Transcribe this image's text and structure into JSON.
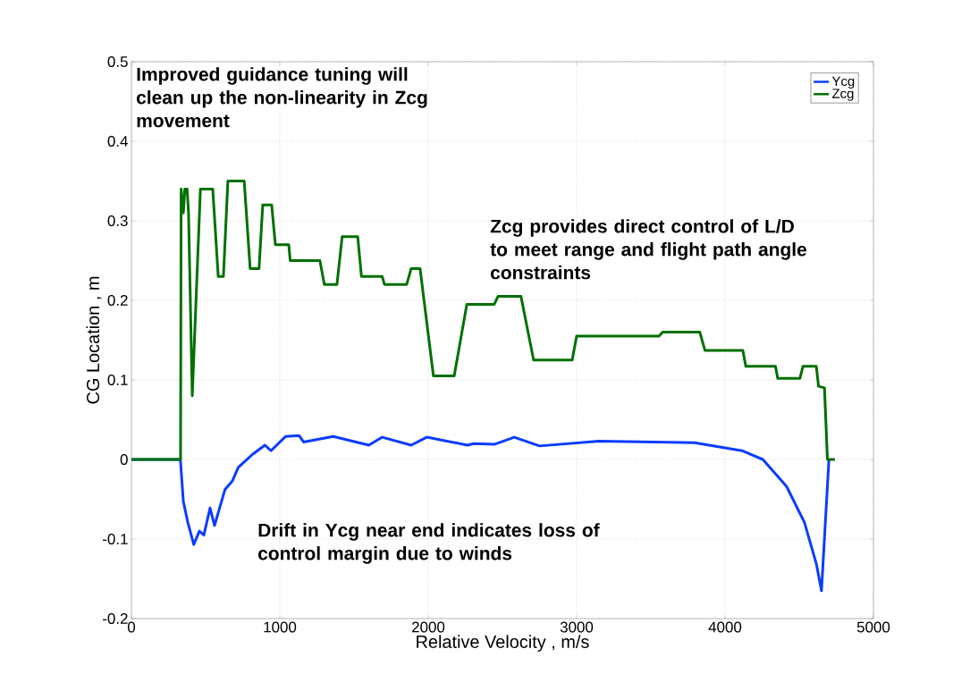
{
  "chart_data": {
    "type": "line",
    "xlabel": "Relative Velocity , m/s",
    "ylabel": "CG Location , m",
    "xlim": [
      0,
      5000
    ],
    "ylim": [
      -0.2,
      0.5
    ],
    "xticks": [
      0,
      1000,
      2000,
      3000,
      4000,
      5000
    ],
    "yticks": [
      -0.2,
      -0.1,
      0,
      0.1,
      0.2,
      0.3,
      0.4,
      0.5
    ],
    "grid": true,
    "legend": "top right",
    "line_style": "solid",
    "annotations": [
      "Improved guidance tuning will clean up the non-linearity in Zcg movement",
      "Zcg provides direct control of L/D to meet range and flight path angle constraints",
      "Drift in Ycg near end indicates loss of control margin due to winds"
    ],
    "series": [
      {
        "name": "Ycg",
        "color": "#0a3cff",
        "x": [
          0,
          330,
          350,
          380,
          420,
          458,
          488,
          530,
          560,
          630,
          680,
          720,
          820,
          900,
          940,
          1040,
          1130,
          1160,
          1360,
          1600,
          1690,
          1885,
          1990,
          2265,
          2307,
          2445,
          2580,
          2750,
          3150,
          3795,
          4115,
          4255,
          4415,
          4535,
          4615,
          4650,
          4700
        ],
        "values": [
          0,
          0,
          -0.053,
          -0.079,
          -0.107,
          -0.09,
          -0.095,
          -0.061,
          -0.083,
          -0.038,
          -0.027,
          -0.01,
          0.007,
          0.018,
          0.011,
          0.029,
          0.03,
          0.022,
          0.029,
          0.018,
          0.028,
          0.018,
          0.028,
          0.018,
          0.02,
          0.019,
          0.028,
          0.017,
          0.023,
          0.021,
          0.011,
          0,
          -0.034,
          -0.079,
          -0.131,
          -0.165,
          0
        ]
      },
      {
        "name": "Zcg",
        "color": "#007000",
        "x": [
          0,
          331,
          335,
          350,
          360,
          375,
          385,
          410,
          465,
          548,
          585,
          620,
          650,
          760,
          800,
          860,
          885,
          945,
          970,
          1060,
          1070,
          1270,
          1300,
          1385,
          1420,
          1525,
          1550,
          1690,
          1705,
          1855,
          1885,
          1945,
          2035,
          2175,
          2260,
          2445,
          2470,
          2625,
          2710,
          2970,
          3000,
          3555,
          3580,
          3830,
          3865,
          4120,
          4140,
          4340,
          4355,
          4505,
          4525,
          4615,
          4630,
          4670,
          4690,
          4740
        ],
        "values": [
          0,
          0,
          0.34,
          0.31,
          0.34,
          0.34,
          0.31,
          0.08,
          0.34,
          0.34,
          0.23,
          0.23,
          0.35,
          0.35,
          0.24,
          0.24,
          0.32,
          0.32,
          0.27,
          0.27,
          0.25,
          0.25,
          0.22,
          0.22,
          0.28,
          0.28,
          0.23,
          0.23,
          0.22,
          0.22,
          0.24,
          0.24,
          0.105,
          0.105,
          0.195,
          0.195,
          0.205,
          0.205,
          0.125,
          0.125,
          0.155,
          0.155,
          0.16,
          0.16,
          0.137,
          0.137,
          0.117,
          0.117,
          0.102,
          0.102,
          0.117,
          0.117,
          0.092,
          0.09,
          0,
          0
        ]
      }
    ]
  }
}
